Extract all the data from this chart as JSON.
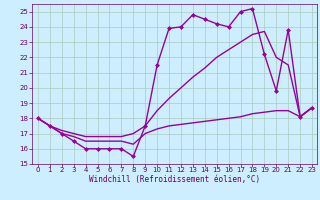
{
  "xlabel": "Windchill (Refroidissement éolien,°C)",
  "background_color": "#cceeff",
  "grid_color": "#aaccbb",
  "line_color": "#990099",
  "xlim": [
    -0.5,
    23.4
  ],
  "ylim": [
    15,
    25.5
  ],
  "yticks": [
    15,
    16,
    17,
    18,
    19,
    20,
    21,
    22,
    23,
    24,
    25
  ],
  "xticks": [
    0,
    1,
    2,
    3,
    4,
    5,
    6,
    7,
    8,
    9,
    10,
    11,
    12,
    13,
    14,
    15,
    16,
    17,
    18,
    19,
    20,
    21,
    22,
    23
  ],
  "series": [
    {
      "x": [
        0,
        1,
        2,
        3,
        4,
        5,
        6,
        7,
        8,
        9,
        10,
        11,
        12,
        13,
        14,
        15,
        16,
        17,
        18,
        19,
        20,
        21,
        22,
        23
      ],
      "y": [
        18,
        17.5,
        17,
        16.5,
        16,
        16,
        16,
        16,
        15.5,
        17.5,
        21.5,
        23.9,
        24,
        24.8,
        24.5,
        24.2,
        24,
        25,
        25.2,
        22.2,
        19.8,
        23.8,
        18.1,
        18.7
      ],
      "marker": "D",
      "markersize": 2.0,
      "linewidth": 1.0
    },
    {
      "x": [
        0,
        1,
        2,
        3,
        4,
        5,
        6,
        7,
        8,
        9,
        10,
        11,
        12,
        13,
        14,
        15,
        16,
        17,
        18,
        19,
        20,
        21,
        22,
        23
      ],
      "y": [
        18,
        17.5,
        17.2,
        17,
        16.8,
        16.8,
        16.8,
        16.8,
        17.0,
        17.5,
        18.5,
        19.3,
        20.0,
        20.7,
        21.3,
        22.0,
        22.5,
        23.0,
        23.5,
        23.7,
        22.0,
        21.5,
        18.1,
        18.7
      ],
      "marker": null,
      "linewidth": 1.0
    },
    {
      "x": [
        0,
        1,
        2,
        3,
        4,
        5,
        6,
        7,
        8,
        9,
        10,
        11,
        12,
        13,
        14,
        15,
        16,
        17,
        18,
        19,
        20,
        21,
        22,
        23
      ],
      "y": [
        18,
        17.5,
        17.0,
        16.8,
        16.5,
        16.5,
        16.5,
        16.5,
        16.3,
        17.0,
        17.3,
        17.5,
        17.6,
        17.7,
        17.8,
        17.9,
        18.0,
        18.1,
        18.3,
        18.4,
        18.5,
        18.5,
        18.1,
        18.7
      ],
      "marker": null,
      "linewidth": 1.0
    }
  ],
  "tick_labelsize": 5,
  "tick_color": "#660066",
  "spine_color": "#660066",
  "xlabel_fontsize": 5.5,
  "figsize": [
    3.2,
    2.0
  ],
  "dpi": 100
}
